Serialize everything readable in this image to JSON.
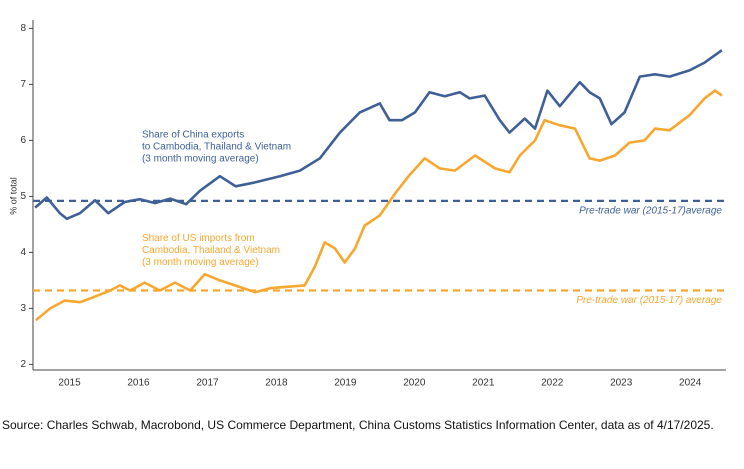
{
  "chart_data": {
    "type": "line",
    "y_label": "% of total",
    "xlim": [
      2014.97,
      2025.02
    ],
    "ylim": [
      1.9,
      8.15
    ],
    "xticks": [
      {
        "value": 2015.5,
        "label": "2015"
      },
      {
        "value": 2016.5,
        "label": "2016"
      },
      {
        "value": 2017.5,
        "label": "2017"
      },
      {
        "value": 2018.5,
        "label": "2018"
      },
      {
        "value": 2019.5,
        "label": "2019"
      },
      {
        "value": 2020.5,
        "label": "2020"
      },
      {
        "value": 2021.5,
        "label": "2021"
      },
      {
        "value": 2022.5,
        "label": "2022"
      },
      {
        "value": 2023.5,
        "label": "2023"
      },
      {
        "value": 2024.5,
        "label": "2024"
      }
    ],
    "yticks": [
      2,
      3,
      4,
      5,
      6,
      7,
      8
    ],
    "series": [
      {
        "name": "Share of China exports to Cambodia, Thailand & Vietnam (3 month moving average)",
        "color": "#3f5f97",
        "x": [
          2015.0,
          2015.17,
          2015.36,
          2015.46,
          2015.65,
          2015.87,
          2016.06,
          2016.3,
          2016.52,
          2016.74,
          2016.96,
          2017.19,
          2017.39,
          2017.68,
          2017.91,
          2018.19,
          2018.55,
          2018.84,
          2019.13,
          2019.42,
          2019.71,
          2020.0,
          2020.14,
          2020.32,
          2020.51,
          2020.72,
          2020.94,
          2021.16,
          2021.3,
          2021.52,
          2021.74,
          2021.88,
          2022.1,
          2022.25,
          2022.43,
          2022.61,
          2022.9,
          2023.04,
          2023.19,
          2023.36,
          2023.55,
          2023.77,
          2023.99,
          2024.2,
          2024.49,
          2024.71,
          2024.96
        ],
        "values": [
          4.8,
          4.98,
          4.7,
          4.6,
          4.7,
          4.93,
          4.7,
          4.9,
          4.95,
          4.88,
          4.96,
          4.86,
          5.1,
          5.36,
          5.18,
          5.25,
          5.36,
          5.46,
          5.68,
          6.14,
          6.5,
          6.66,
          6.36,
          6.36,
          6.5,
          6.86,
          6.79,
          6.86,
          6.75,
          6.8,
          6.36,
          6.14,
          6.39,
          6.21,
          6.89,
          6.61,
          7.04,
          6.86,
          6.75,
          6.29,
          6.5,
          7.14,
          7.18,
          7.14,
          7.25,
          7.39,
          7.61
        ]
      },
      {
        "name": "Share of US imports from Cambodia, Thailand & Vietnam (3 month moving average)",
        "color": "#f7a72f",
        "x": [
          2015.01,
          2015.22,
          2015.43,
          2015.65,
          2015.87,
          2016.09,
          2016.23,
          2016.38,
          2016.59,
          2016.81,
          2017.03,
          2017.25,
          2017.46,
          2017.68,
          2017.9,
          2018.19,
          2018.41,
          2018.7,
          2018.91,
          2019.06,
          2019.2,
          2019.35,
          2019.49,
          2019.64,
          2019.78,
          2020.0,
          2020.22,
          2020.43,
          2020.65,
          2020.87,
          2021.09,
          2021.38,
          2021.67,
          2021.88,
          2022.03,
          2022.25,
          2022.39,
          2022.61,
          2022.83,
          2023.04,
          2023.19,
          2023.41,
          2023.62,
          2023.84,
          2023.99,
          2024.2,
          2024.49,
          2024.71,
          2024.86,
          2024.96
        ],
        "values": [
          2.79,
          3.0,
          3.14,
          3.11,
          3.21,
          3.32,
          3.41,
          3.32,
          3.46,
          3.32,
          3.46,
          3.32,
          3.61,
          3.5,
          3.41,
          3.29,
          3.36,
          3.39,
          3.41,
          3.75,
          4.18,
          4.07,
          3.82,
          4.07,
          4.48,
          4.66,
          5.05,
          5.38,
          5.68,
          5.5,
          5.46,
          5.73,
          5.5,
          5.43,
          5.73,
          6.0,
          6.36,
          6.27,
          6.21,
          5.68,
          5.64,
          5.73,
          5.96,
          6.0,
          6.21,
          6.18,
          6.45,
          6.75,
          6.89,
          6.8
        ]
      }
    ],
    "annotations": [
      {
        "lines": [
          "Share of China exports",
          "to Cambodia, Thailand & Vietnam",
          "(3 month moving average)"
        ],
        "color": "#3f5f97",
        "x": 2016.55,
        "y": 6.1
      },
      {
        "lines": [
          "Share of US imports from",
          "Cambodia, Thailand & Vietnam",
          "(3 month moving average)"
        ],
        "color": "#f7a72f",
        "x": 2016.55,
        "y": 4.25
      }
    ],
    "reference_lines": [
      {
        "value": 4.92,
        "label": "Pre-trade war (2015-17)average",
        "color": "#3f5f97"
      },
      {
        "value": 3.32,
        "label": "Pre-trade war (2015-17) average",
        "color": "#f7a72f"
      }
    ],
    "source": "Source: Charles Schwab, Macrobond, US Commerce Department, China Customs Statistics Information Center, data as of 4/17/2025."
  }
}
